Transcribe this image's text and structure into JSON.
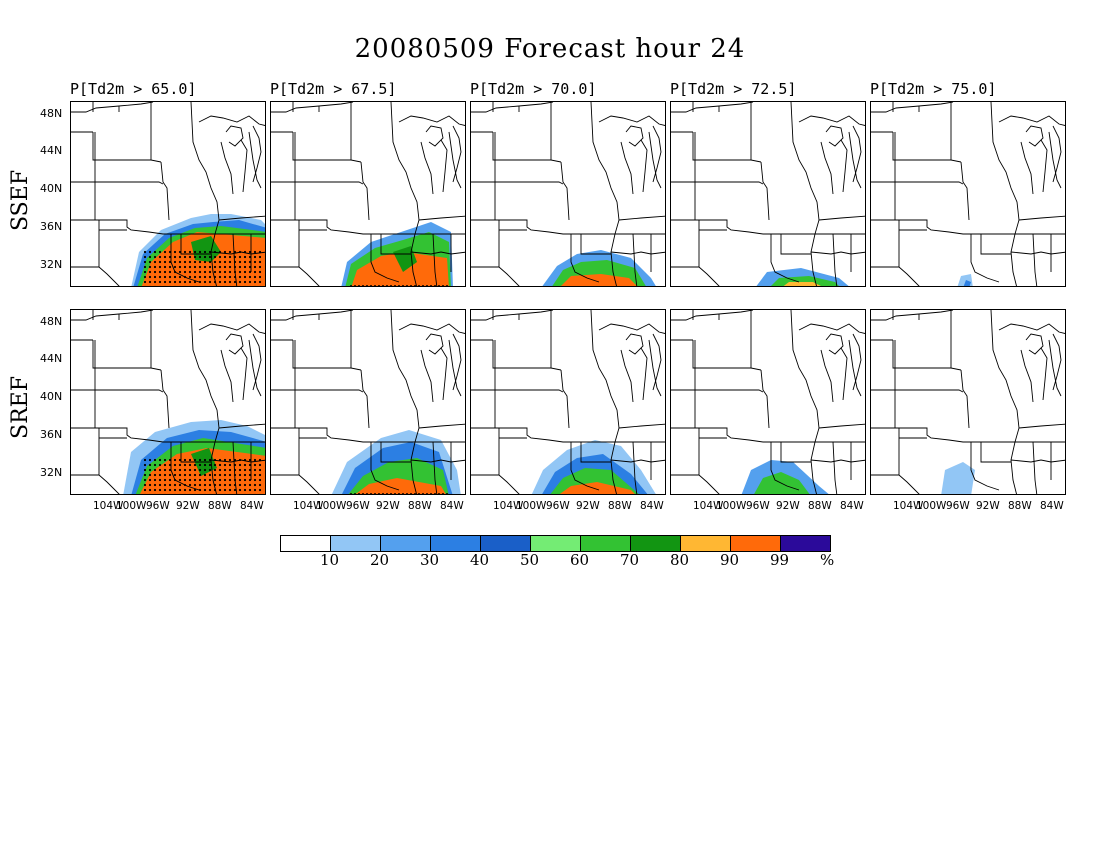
{
  "title": "20080509 Forecast hour 24",
  "row_labels": [
    "SSEF",
    "SREF"
  ],
  "panel_titles": [
    "P[Td2m > 65.0]",
    "P[Td2m > 67.5]",
    "P[Td2m > 70.0]",
    "P[Td2m > 72.5]",
    "P[Td2m > 75.0]"
  ],
  "lat_labels": [
    "48N",
    "44N",
    "40N",
    "36N",
    "32N"
  ],
  "lon_labels": [
    "104W",
    "100W",
    "96W",
    "92W",
    "88W",
    "84W"
  ],
  "colorbar": {
    "labels": [
      "10",
      "20",
      "30",
      "40",
      "50",
      "60",
      "70",
      "80",
      "90",
      "99",
      "%"
    ],
    "colors": [
      "#ffffff",
      "#92c6f5",
      "#54a0ee",
      "#2c7fe3",
      "#1a5fc8",
      "#74ec74",
      "#33c233",
      "#129512",
      "#ffb733",
      "#ff6a0a",
      "#2b0a9a"
    ]
  }
}
